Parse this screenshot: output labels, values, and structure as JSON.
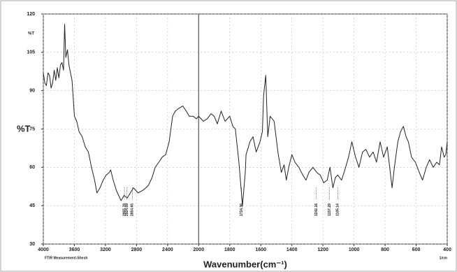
{
  "chart_data": {
    "type": "line",
    "ylabel": "%T",
    "y_unit_label": "%T",
    "xlabel": "Wavenumber(cm⁻¹)",
    "x_unit_label": "1/cm",
    "footer": "FTIR Measurement-Shesh",
    "xlim": [
      4000,
      400
    ],
    "ylim": [
      30,
      120
    ],
    "xticks": [
      4000,
      3600,
      3200,
      2800,
      2400,
      2000,
      1800,
      1600,
      1400,
      1200,
      1000,
      800,
      600,
      400
    ],
    "yticks": [
      30,
      45,
      60,
      75,
      90,
      105,
      120
    ],
    "x_scale_break": 2000,
    "x_scale_ratio": 2,
    "grid": true,
    "color": "#222222",
    "x": [
      4000,
      3980,
      3960,
      3940,
      3920,
      3900,
      3880,
      3860,
      3840,
      3820,
      3800,
      3780,
      3760,
      3740,
      3726,
      3710,
      3690,
      3670,
      3650,
      3630,
      3600,
      3570,
      3540,
      3500,
      3460,
      3420,
      3380,
      3340,
      3310,
      3270,
      3230,
      3190,
      3150,
      3133,
      3100,
      3060,
      3030,
      3000,
      2960,
      2920,
      2880,
      2840,
      2780,
      2720,
      2680,
      2646,
      2600,
      2560,
      2513,
      2470,
      2425,
      2380,
      2336,
      2300,
      2260,
      2204,
      2160,
      2120,
      2071,
      2030,
      2000,
      1970,
      1945,
      1920,
      1900,
      1880,
      1855,
      1830,
      1800,
      1780,
      1764,
      1741,
      1718,
      1700,
      1695,
      1670,
      1650,
      1630,
      1605,
      1590,
      1582,
      1568,
      1555,
      1540,
      1514,
      1490,
      1468,
      1450,
      1436,
      1420,
      1400,
      1380,
      1355,
      1330,
      1309,
      1290,
      1264,
      1240,
      1218,
      1195,
      1173,
      1155,
      1136,
      1120,
      1105,
      1080,
      1059,
      1035,
      1014,
      990,
      968,
      945,
      923,
      900,
      877,
      855,
      832,
      810,
      786,
      770,
      755,
      740,
      718,
      700,
      682,
      665,
      650,
      630,
      605,
      580,
      559,
      535,
      514,
      490,
      468,
      450,
      436,
      420,
      409,
      400
    ],
    "values": [
      97,
      93,
      92,
      97,
      96,
      91,
      93,
      98,
      94,
      99,
      95,
      100,
      101,
      98,
      116,
      103,
      106,
      100,
      97,
      94,
      80,
      78,
      74,
      72,
      68,
      66,
      60,
      55,
      50,
      52,
      55,
      57,
      58,
      59,
      55,
      51,
      49,
      47,
      49,
      48,
      50,
      52,
      50,
      51,
      52,
      53,
      56,
      60,
      62,
      64,
      65,
      70,
      80,
      82,
      83,
      84,
      82,
      80,
      80,
      79,
      80,
      78,
      79,
      81,
      80,
      77,
      82,
      78,
      80,
      76,
      75,
      62,
      45,
      58,
      65,
      70,
      72,
      66,
      70,
      74,
      88,
      96,
      72,
      80,
      78,
      66,
      58,
      61,
      55,
      60,
      65,
      62,
      60,
      57,
      55,
      58,
      60,
      58,
      57,
      54,
      55,
      60,
      52,
      56,
      57,
      55,
      59,
      64,
      70,
      64,
      60,
      66,
      67,
      64,
      66,
      62,
      70,
      64,
      68,
      60,
      52,
      60,
      70,
      74,
      76,
      72,
      70,
      64,
      62,
      58,
      55,
      60,
      63,
      60,
      62,
      61,
      68,
      64,
      65,
      70
    ],
    "annotations": [
      {
        "x": 2955.78,
        "label": "2955.78"
      },
      {
        "x": 2924.09,
        "label": "2924.09"
      },
      {
        "x": 2854.65,
        "label": "2854.65"
      },
      {
        "x": 1724.36,
        "label": "1724.36"
      },
      {
        "x": 1242.16,
        "label": "1242.16"
      },
      {
        "x": 1157.29,
        "label": "1157.29"
      },
      {
        "x": 1105.14,
        "label": "1105.14"
      }
    ]
  }
}
